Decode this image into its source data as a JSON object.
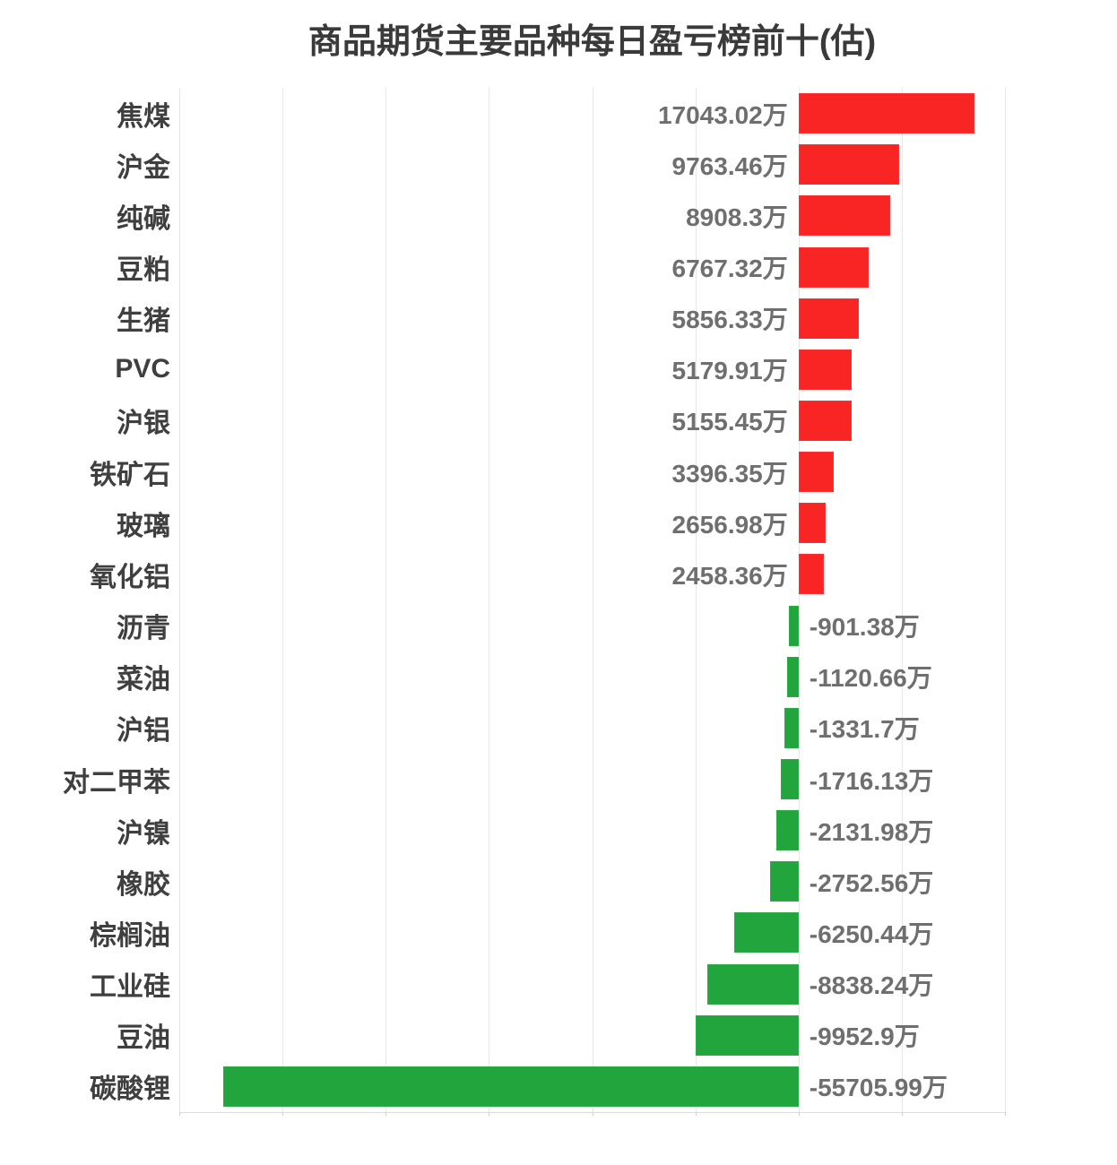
{
  "title": "商品期货主要品种每日盈亏榜前十(估)",
  "colors": {
    "positive": "#f92424",
    "negative": "#22a53c",
    "positive_border": "rgba(250,80,80,0.35)",
    "negative_border": "rgba(70,180,95,0.35)",
    "background": "#ffffff",
    "gridline": "#e7e7e7",
    "title_text": "#3a3a3a",
    "category_text": "#3f3f3f",
    "value_text": "#6f6f6f"
  },
  "chart_data": {
    "type": "bar",
    "orientation": "horizontal",
    "title": "商品期货主要品种每日盈亏榜前十(估)",
    "unit": "万",
    "grid": true,
    "legend": false,
    "xlim": [
      -60000,
      20000
    ],
    "grid_interval": 10000,
    "categories": [
      "焦煤",
      "沪金",
      "纯碱",
      "豆粕",
      "生猪",
      "PVC",
      "沪银",
      "铁矿石",
      "玻璃",
      "氧化铝",
      "沥青",
      "菜油",
      "沪铝",
      "对二甲苯",
      "沪镍",
      "橡胶",
      "棕榈油",
      "工业硅",
      "豆油",
      "碳酸锂"
    ],
    "values": [
      17043.02,
      9763.46,
      8908.3,
      6767.32,
      5856.33,
      5179.91,
      5155.45,
      3396.35,
      2656.98,
      2458.36,
      -901.38,
      -1120.66,
      -1331.7,
      -1716.13,
      -2131.98,
      -2752.56,
      -6250.44,
      -8838.24,
      -9952.9,
      -55705.99
    ],
    "value_labels": [
      "17043.02万",
      "9763.46万",
      "8908.3万",
      "6767.32万",
      "5856.33万",
      "5179.91万",
      "5155.45万",
      "3396.35万",
      "2656.98万",
      "2458.36万",
      "-901.38万",
      "-1120.66万",
      "-1331.7万",
      "-1716.13万",
      "-2131.98万",
      "-2752.56万",
      "-6250.44万",
      "-8838.24万",
      "-9952.9万",
      "-55705.99万"
    ]
  }
}
